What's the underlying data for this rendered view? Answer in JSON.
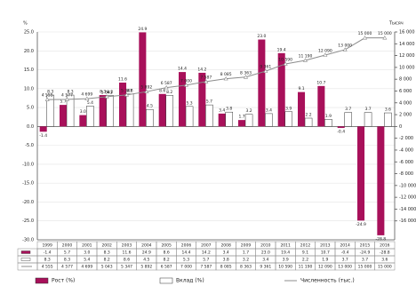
{
  "chart_data": {
    "type": "bar",
    "y_label": "%",
    "y2_label": "Тысяч",
    "categories": [
      "1999",
      "2000",
      "2001",
      "2002",
      "2003",
      "2004",
      "2005",
      "2006",
      "2007",
      "2008",
      "2009",
      "2010",
      "2011",
      "2012",
      "2013",
      "2014",
      "2015",
      "2016"
    ],
    "ylim": [
      -30,
      25
    ],
    "yticks": [
      {
        "value": 25,
        "label": "25.0"
      },
      {
        "value": 20,
        "label": "20.0"
      },
      {
        "value": 15,
        "label": "15.0"
      },
      {
        "value": 10,
        "label": "10.0"
      },
      {
        "value": 5,
        "label": "5.0"
      },
      {
        "value": 0,
        "label": "0.0"
      },
      {
        "value": -5,
        "label": "-5.0"
      },
      {
        "value": -10,
        "label": "-10.0"
      },
      {
        "value": -15,
        "label": "-15.0"
      },
      {
        "value": -20,
        "label": "-20.0"
      },
      {
        "value": -25,
        "label": "-25.0"
      },
      {
        "value": -30,
        "label": "-30.0"
      }
    ],
    "y2lim": [
      -19200,
      16000
    ],
    "y2ticks": [
      {
        "value": 16000,
        "label": "16 000"
      },
      {
        "value": 14000,
        "label": "14 000"
      },
      {
        "value": 12000,
        "label": "12 000"
      },
      {
        "value": 10000,
        "label": "10 000"
      },
      {
        "value": 8000,
        "label": "8 000"
      },
      {
        "value": 6000,
        "label": "6 000"
      },
      {
        "value": 4000,
        "label": "4 000"
      },
      {
        "value": 2000,
        "label": "2 000"
      },
      0,
      {
        "value": -2000,
        "label": "-2 000"
      },
      {
        "value": -4000,
        "label": "-4 000"
      },
      {
        "value": -6000,
        "label": "-6 000"
      },
      {
        "value": -8000,
        "label": "-8 000"
      },
      {
        "value": -10000,
        "label": "-10 000"
      },
      {
        "value": -12000,
        "label": "-12 000"
      },
      {
        "value": -14000,
        "label": "-14 000"
      },
      {
        "value": -16000,
        "label": "-16 000"
      }
    ],
    "grid": true,
    "series": [
      {
        "name": "Рост (%)",
        "type": "bar",
        "color": "#a8105a",
        "values": [
          -1.4,
          5.7,
          3,
          8.3,
          11.6,
          24.9,
          8.6,
          14.4,
          14.2,
          3.4,
          1.7,
          23,
          19.4,
          9.1,
          10.7,
          -0.4,
          -24.9,
          -28.8
        ],
        "value_labels": [
          "-1.4",
          "5.7",
          "3.0",
          "8.3",
          "11.6",
          "24.9",
          "8.6",
          "14.4",
          "14.2",
          "3.4",
          "1.7",
          "23.0",
          "19.4",
          "9.1",
          "10.7",
          "-0.4",
          "-24.9",
          "-28.8"
        ]
      },
      {
        "name": "Вклад (%)",
        "type": "bar",
        "color": "#ffffff",
        "values": [
          8.3,
          8.3,
          5.4,
          8.2,
          8.6,
          4.5,
          8.2,
          5.3,
          5.7,
          3.8,
          3.2,
          3.4,
          3.9,
          2.2,
          1.9,
          3.7,
          3.7,
          3.6
        ],
        "value_labels": [
          "8.3",
          "8.3",
          "5.4",
          "8.2",
          "8.6",
          "4.5",
          "8.2",
          "5.3",
          "5.7",
          "3.8",
          "3.2",
          "3.4",
          "3.9",
          "2.2",
          "1.9",
          "3.7",
          "3.7",
          "3.6"
        ]
      },
      {
        "name": "Численность (тыс.)",
        "type": "line",
        "axis": "y2",
        "color": "#8c8c8c",
        "values": [
          4555,
          4577,
          4699,
          5043,
          5347,
          5892,
          6587,
          7000,
          7587,
          8085,
          8363,
          9361,
          10590,
          11190,
          12090,
          13000,
          15000,
          15000
        ],
        "value_labels": [
          "4 555",
          "4 577",
          "4 699",
          "5 043",
          "5 347",
          "5 892",
          "6 587",
          "7 000",
          "7 587",
          "8 085",
          "8 363",
          "9 361",
          "10 590",
          "11 190",
          "12 090",
          "13 000",
          "15 000",
          "15 000"
        ]
      }
    ]
  }
}
